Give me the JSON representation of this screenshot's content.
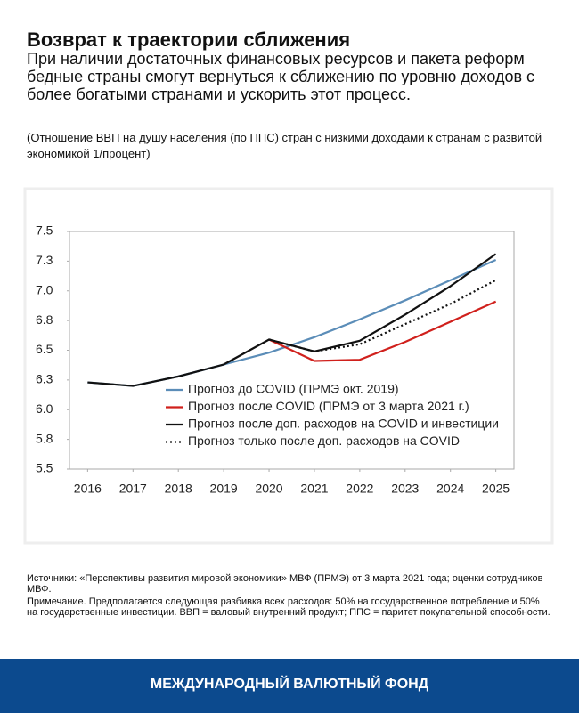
{
  "chart_data": {
    "type": "line",
    "title": "Возврат к траектории сближения",
    "subtitle": "При наличии достаточных финансовых ресурсов и пакета реформ бедные страны смогут вернуться к сближению по уровню доходов с более богатыми странами и ускорить этот процесс.",
    "units": "(Отношение ВВП на душу населения (по ППС) стран с низкими доходами к странам с развитой экономикой 1/процент)",
    "x": [
      2016,
      2017,
      2018,
      2019,
      2020,
      2021,
      2022,
      2023,
      2024,
      2025
    ],
    "xlim": [
      2015.6,
      2025.4
    ],
    "xticks": [
      2016,
      2017,
      2018,
      2019,
      2020,
      2021,
      2022,
      2023,
      2024,
      2025
    ],
    "ylim": [
      5.5,
      7.5
    ],
    "yticks": [
      {
        "value": 7.5,
        "label": "7.5"
      },
      {
        "value": 7.25,
        "label": "7.3"
      },
      {
        "value": 7.0,
        "label": "7.0"
      },
      {
        "value": 6.75,
        "label": "6.8"
      },
      {
        "value": 6.5,
        "label": "6.5"
      },
      {
        "value": 6.25,
        "label": "6.3"
      },
      {
        "value": 6.0,
        "label": "6.0"
      },
      {
        "value": 5.75,
        "label": "5.8"
      },
      {
        "value": 5.5,
        "label": "5.5"
      }
    ],
    "grid": false,
    "series": [
      {
        "name": "Прогноз до COVID (ПРМЭ окт. 2019)",
        "color": "#5b8db8",
        "dash": "solid",
        "values": [
          6.23,
          6.2,
          6.28,
          6.38,
          6.48,
          6.61,
          6.76,
          6.92,
          7.09,
          7.26
        ]
      },
      {
        "name": "Прогноз после COVID (ПРМЭ от 3 марта 2021 г.)",
        "color": "#d0201c",
        "dash": "solid",
        "values": [
          null,
          null,
          null,
          null,
          6.59,
          6.41,
          6.42,
          6.57,
          6.74,
          6.91
        ]
      },
      {
        "name": "Прогноз после доп. расходов на COVID и инвестиции",
        "color": "#111111",
        "dash": "solid",
        "values": [
          6.23,
          6.2,
          6.28,
          6.38,
          6.59,
          6.49,
          6.58,
          6.8,
          7.04,
          7.31
        ]
      },
      {
        "name": "Прогноз только  после доп. расходов на COVID",
        "color": "#111111",
        "dash": "dotted",
        "values": [
          null,
          null,
          null,
          null,
          6.59,
          6.49,
          6.55,
          6.72,
          6.89,
          7.09
        ]
      }
    ],
    "sources": "Источники: «Перспективы развития мировой экономики» МВФ (ПРМЭ) от 3 марта 2021 года; оценки сотрудников МВФ.",
    "note": "Примечание. Предполагается следующая разбивка всех расходов: 50% на государственное потребление и 50% на государственные инвестиции. ВВП = валовый внутренний продукт; ППС = паритет покупательной способности.",
    "footer": "МЕЖДУНАРОДНЫЙ ВАЛЮТНЫЙ ФОНД"
  }
}
